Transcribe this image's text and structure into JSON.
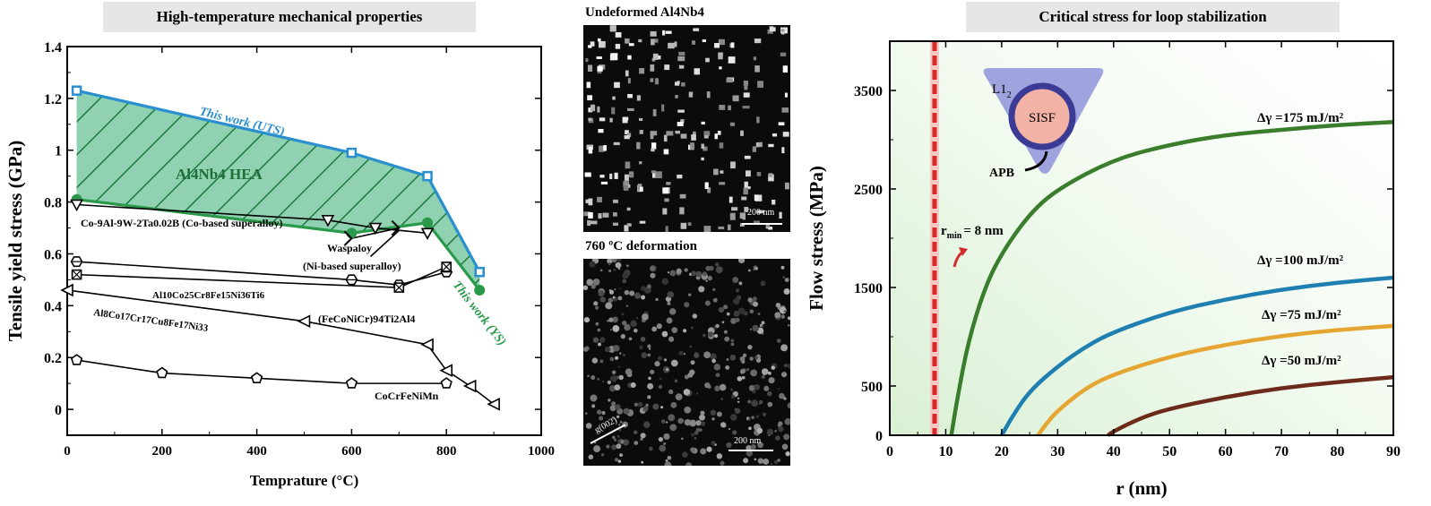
{
  "titles": {
    "left": "High-temperature mechanical properties",
    "right": "Critical stress for loop stabilization"
  },
  "tem": {
    "top_label": "Undeformed Al4Nb4",
    "bottom_label": "760 ºC deformation",
    "scale_bar_top": "200 nm",
    "scale_bar_bottom": "200 nm",
    "g_vector": "g(002)"
  },
  "chart_data": [
    {
      "type": "line",
      "xlabel": "Temprature (°C)",
      "ylabel": "Tensile yield stress (GPa)",
      "xlim": [
        0,
        1000
      ],
      "ylim": [
        -0.1,
        1.4
      ],
      "xticks": [
        "0",
        "200",
        "400",
        "600",
        "800",
        "1000"
      ],
      "yticks": [
        "0",
        "0.2",
        "0.4",
        "0.6",
        "0.8",
        "1",
        "1.2",
        "1.4"
      ],
      "region_label": "Al4Nb4 HEA",
      "series": [
        {
          "name": "This work (UTS)",
          "color": "#2a8fcf",
          "marker": "square",
          "x": [
            20,
            600,
            760,
            870
          ],
          "y": [
            1.23,
            0.99,
            0.9,
            0.53
          ]
        },
        {
          "name": "This work (YS)",
          "color": "#2a9a4a",
          "marker": "circle",
          "x": [
            20,
            600,
            760,
            870
          ],
          "y": [
            0.81,
            0.68,
            0.72,
            0.46
          ]
        },
        {
          "name": "Co-9Al-9W-2Ta0.02B (Co-based superalloy)",
          "color": "#000000",
          "marker": "triangle-down",
          "x": [
            20,
            550,
            650,
            760
          ],
          "y": [
            0.79,
            0.73,
            0.7,
            0.68
          ]
        },
        {
          "name": "Waspaloy",
          "sub": "(Ni-based superalloy)",
          "color": "#000000",
          "marker": "arrow",
          "x": [
            600,
            700
          ],
          "y": [
            0.66,
            0.7
          ]
        },
        {
          "name": "Al10Co25Cr8Fe15Ni36Ti6",
          "color": "#000000",
          "marker": "hexagon",
          "x": [
            20,
            600,
            700,
            800
          ],
          "y": [
            0.57,
            0.5,
            0.48,
            0.53
          ]
        },
        {
          "name": "(FeCoNiCr)94Ti2Al4",
          "color": "#000000",
          "marker": "box-x",
          "x": [
            20,
            700,
            800
          ],
          "y": [
            0.52,
            0.47,
            0.55
          ]
        },
        {
          "name": "Al8Co17Cr17Cu8Fe17Ni33",
          "color": "#000000",
          "marker": "triangle-left",
          "x": [
            0,
            500,
            760,
            800,
            850,
            900
          ],
          "y": [
            0.46,
            0.34,
            0.25,
            0.15,
            0.09,
            0.02
          ]
        },
        {
          "name": "CoCrFeNiMn",
          "color": "#000000",
          "marker": "pentagon",
          "x": [
            20,
            200,
            400,
            600,
            800
          ],
          "y": [
            0.19,
            0.14,
            0.12,
            0.1,
            0.1
          ]
        }
      ]
    },
    {
      "type": "line",
      "xlabel": "r (nm)",
      "ylabel": "Flow stress (MPa)",
      "xlim": [
        0,
        90
      ],
      "ylim": [
        0,
        4000
      ],
      "xticks": [
        "0",
        "10",
        "20",
        "30",
        "40",
        "50",
        "60",
        "70",
        "80",
        "90"
      ],
      "yticks": [
        "0",
        "500",
        "1500",
        "2500",
        "3500"
      ],
      "rmin": 8,
      "rmin_label": "r",
      "rmin_sub": "min",
      "rmin_value": "= 8 nm",
      "inset": {
        "phase": "L1",
        "phase_sub": "2",
        "core": "SISF",
        "boundary": "APB"
      },
      "series": [
        {
          "name": "Δγ =175 mJ/m²",
          "color": "#3a7d2c",
          "x": [
            11,
            12,
            14,
            17,
            20,
            25,
            30,
            40,
            50,
            60,
            70,
            80,
            90
          ],
          "y": [
            0,
            350,
            950,
            1500,
            1850,
            2250,
            2500,
            2800,
            2950,
            3050,
            3100,
            3150,
            3180
          ]
        },
        {
          "name": "Δγ =100 mJ/m²",
          "color": "#1e7fb0",
          "x": [
            20,
            22,
            25,
            30,
            35,
            40,
            50,
            60,
            70,
            80,
            90
          ],
          "y": [
            0,
            200,
            450,
            700,
            900,
            1050,
            1250,
            1380,
            1480,
            1550,
            1600
          ]
        },
        {
          "name": "Δγ =75 mJ/m²",
          "color": "#e5a532",
          "x": [
            26.5,
            28,
            30,
            35,
            40,
            50,
            60,
            70,
            80,
            90
          ],
          "y": [
            0,
            120,
            250,
            480,
            620,
            800,
            920,
            1010,
            1070,
            1110
          ]
        },
        {
          "name": "Δγ =50 mJ/m²",
          "color": "#6b2a1a",
          "x": [
            39,
            40,
            45,
            50,
            60,
            70,
            80,
            90
          ],
          "y": [
            0,
            40,
            180,
            270,
            390,
            480,
            540,
            590
          ]
        }
      ]
    }
  ]
}
